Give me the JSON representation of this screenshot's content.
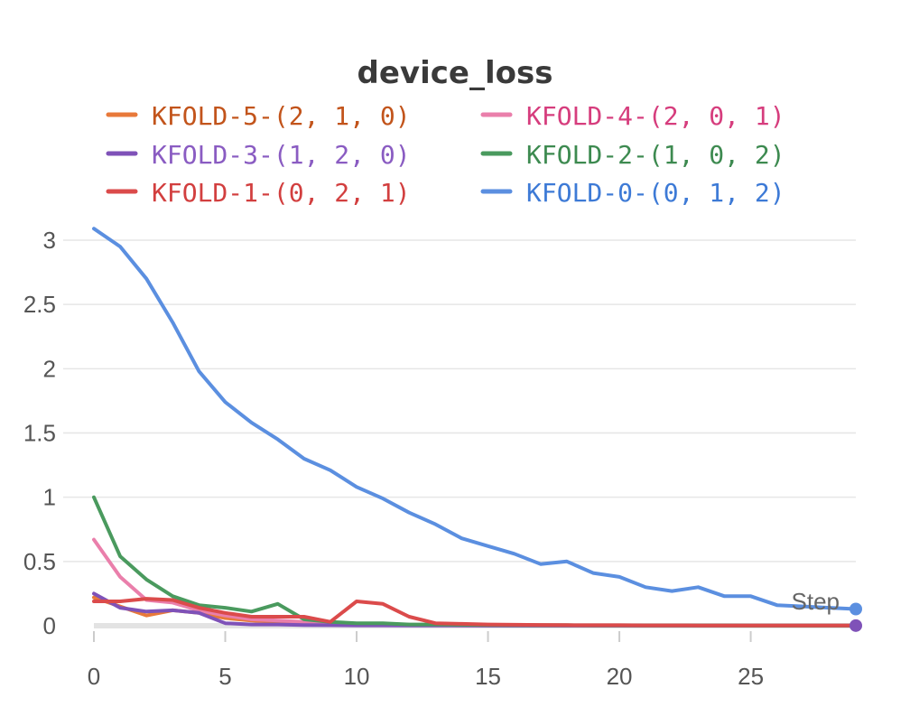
{
  "chart_data": {
    "type": "line",
    "title": "device_loss",
    "xlabel": "Step",
    "ylabel": "",
    "xlim": [
      0,
      29
    ],
    "ylim": [
      0,
      3
    ],
    "x_ticks": [
      0,
      5,
      10,
      15,
      20,
      25
    ],
    "y_ticks": [
      0,
      0.5,
      1,
      1.5,
      2,
      2.5,
      3
    ],
    "x_tick_labels": [
      "0",
      "5",
      "10",
      "15",
      "20",
      "25"
    ],
    "y_tick_labels": [
      "0",
      "0.5",
      "1",
      "1.5",
      "2",
      "2.5",
      "3"
    ],
    "grid": true,
    "legend_position": "top",
    "series": [
      {
        "name": "KFOLD-5-(2, 1, 0)",
        "color": "#e8793a",
        "text_color": "#c2541b",
        "values": [
          0.22,
          0.15,
          0.08,
          0.12,
          0.1,
          0.06,
          0.04,
          0.03,
          0.02,
          0.01,
          0.01,
          0.01,
          0.005,
          0.005,
          0.003,
          0.003,
          0.002,
          0.002,
          0.002,
          0.001,
          0.001,
          0.001,
          0.001,
          0.001,
          0.001,
          0.001,
          0.001,
          0.001,
          0.001,
          0.001
        ]
      },
      {
        "name": "KFOLD-4-(2, 0, 1)",
        "color": "#ea7fab",
        "text_color": "#d63d7d",
        "values": [
          0.67,
          0.38,
          0.2,
          0.18,
          0.12,
          0.08,
          0.05,
          0.04,
          0.03,
          0.02,
          0.015,
          0.01,
          0.008,
          0.006,
          0.005,
          0.004,
          0.003,
          0.003,
          0.002,
          0.002,
          0.002,
          0.001,
          0.001,
          0.001,
          0.001,
          0.001,
          0.001,
          0.001,
          0.001,
          0.001
        ]
      },
      {
        "name": "KFOLD-3-(1, 2, 0)",
        "color": "#7f52b8",
        "text_color": "#8a5cc2",
        "values": [
          0.25,
          0.14,
          0.11,
          0.12,
          0.1,
          0.02,
          0.01,
          0.01,
          0.005,
          0.004,
          0.003,
          0.003,
          0.002,
          0.002,
          0.002,
          0.001,
          0.001,
          0.001,
          0.001,
          0.001,
          0.001,
          0.001,
          0.001,
          0.001,
          0.001,
          0.001,
          0.001,
          0.001,
          0.001,
          0.001
        ]
      },
      {
        "name": "KFOLD-2-(1, 0, 2)",
        "color": "#4a9a5e",
        "text_color": "#3d8a50",
        "values": [
          1.0,
          0.54,
          0.36,
          0.23,
          0.16,
          0.14,
          0.11,
          0.17,
          0.05,
          0.03,
          0.02,
          0.02,
          0.01,
          0.01,
          0.008,
          0.006,
          0.005,
          0.004,
          0.004,
          0.003,
          0.003,
          0.002,
          0.002,
          0.002,
          0.002,
          0.001,
          0.001,
          0.001,
          0.001,
          0.001
        ]
      },
      {
        "name": "KFOLD-1-(0, 2, 1)",
        "color": "#db4b4b",
        "text_color": "#d23f3f",
        "values": [
          0.19,
          0.19,
          0.21,
          0.2,
          0.14,
          0.1,
          0.07,
          0.07,
          0.07,
          0.03,
          0.19,
          0.17,
          0.07,
          0.02,
          0.015,
          0.01,
          0.008,
          0.006,
          0.005,
          0.004,
          0.004,
          0.003,
          0.003,
          0.002,
          0.002,
          0.002,
          0.002,
          0.002,
          0.002,
          0.002
        ]
      },
      {
        "name": "KFOLD-0-(0, 1, 2)",
        "color": "#5b8fe0",
        "text_color": "#3d7ad6",
        "values": [
          3.09,
          2.95,
          2.7,
          2.36,
          1.98,
          1.74,
          1.58,
          1.45,
          1.3,
          1.21,
          1.08,
          0.99,
          0.88,
          0.79,
          0.68,
          0.62,
          0.56,
          0.48,
          0.5,
          0.41,
          0.38,
          0.3,
          0.27,
          0.3,
          0.23,
          0.23,
          0.16,
          0.15,
          0.14,
          0.13
        ]
      }
    ]
  }
}
